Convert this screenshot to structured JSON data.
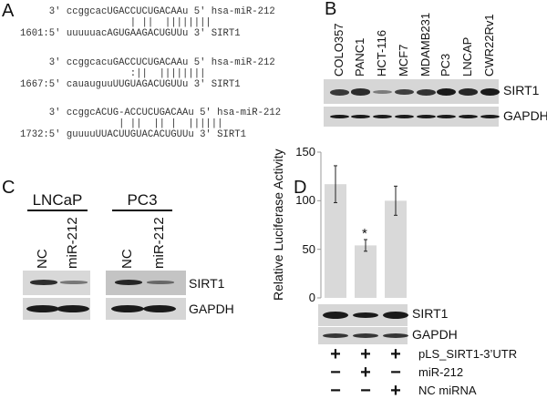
{
  "panel_a": {
    "label": "A",
    "alignments": [
      {
        "mirna": "     3' ccggcacUGACCUCUGACAAu 5' hsa-miR-212",
        "pairs": "                   | ||  ||||||||",
        "target": "1601:5' uuuuuacAGUGAAGACUGUUu 3' SIRT1"
      },
      {
        "mirna": "     3' ccggcacuGACCUCUGACAAu 5' hsa-miR-212",
        "pairs": "                   :||  ||||||||",
        "target": "1667:5' cauauguuUUGUAGACUGUUu 3' SIRT1"
      },
      {
        "mirna": "     3' ccggcACUG-ACCUCUGACAAu 5' hsa-miR-212",
        "pairs": "                 | ||  || |  ||||||",
        "target": "1732:5' guuuuUUACUUGUACACUGUUu 3' SIRT1"
      }
    ]
  },
  "panel_b": {
    "label": "B",
    "lanes": [
      "COLO357",
      "PANC1",
      "HCT-116",
      "MCF7",
      "MDAMB231",
      "PC3",
      "LNCAP",
      "CWR22Rv1"
    ],
    "sirt1_intensity": [
      0.75,
      0.85,
      0.2,
      0.7,
      0.8,
      1.0,
      0.9,
      1.0
    ],
    "rows": [
      "SIRT1",
      "GAPDH"
    ]
  },
  "panel_c": {
    "label": "C",
    "groups": [
      {
        "cell_line": "LNCaP",
        "lanes": [
          "NC",
          "miR-212"
        ],
        "sirt1_intensity": [
          0.85,
          0.3
        ]
      },
      {
        "cell_line": "PC3",
        "lanes": [
          "NC",
          "miR-212"
        ],
        "sirt1_intensity": [
          0.9,
          0.35
        ]
      }
    ],
    "rows": [
      "SIRT1",
      "GAPDH"
    ]
  },
  "panel_d": {
    "label": "D",
    "blot_rows": [
      "SIRT1",
      "GAPDH"
    ],
    "sirt1_intensity": [
      1.0,
      0.6,
      1.0
    ],
    "conditions": [
      {
        "label": "pLS_SIRT1-3’UTR",
        "signs": [
          "+",
          "+",
          "+"
        ]
      },
      {
        "label": "miR-212",
        "signs": [
          "−",
          "+",
          "−"
        ]
      },
      {
        "label": "NC miRNA",
        "signs": [
          "−",
          "−",
          "+"
        ]
      }
    ]
  },
  "chart_data": {
    "type": "bar",
    "ylabel": "Relative  Luciferase Activity",
    "ylim": [
      0,
      150
    ],
    "yticks": [
      "0",
      "50",
      "100",
      "150"
    ],
    "values": [
      117,
      54,
      100
    ],
    "errors": [
      19,
      6,
      15
    ],
    "annotations": [
      "",
      "*",
      ""
    ],
    "bar_color": "#d9d9d9",
    "grid": false
  }
}
